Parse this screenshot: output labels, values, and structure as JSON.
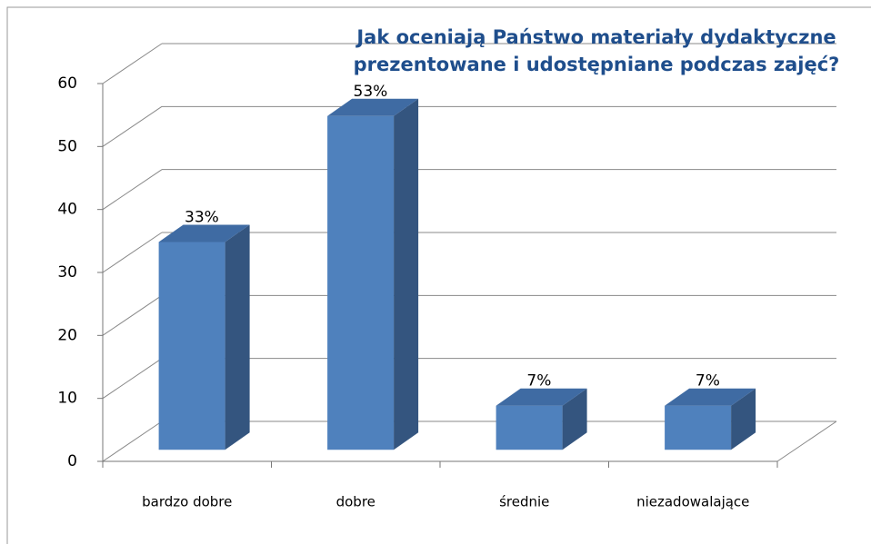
{
  "chart_data": {
    "type": "bar3d",
    "title": "Jak oceniają Państwo materiały dydaktyczne prezentowane i udostępniane podczas zajęć?",
    "categories": [
      "bardzo dobre",
      "dobre",
      "średnie",
      "niezadowalające"
    ],
    "values": [
      33,
      53,
      7,
      7
    ],
    "value_labels": [
      "33%",
      "53%",
      "7%",
      "7%"
    ],
    "color": "#4f81bd",
    "ylim": [
      0,
      60
    ],
    "yticks": [
      0,
      10,
      20,
      30,
      40,
      50,
      60
    ],
    "grid": true
  }
}
